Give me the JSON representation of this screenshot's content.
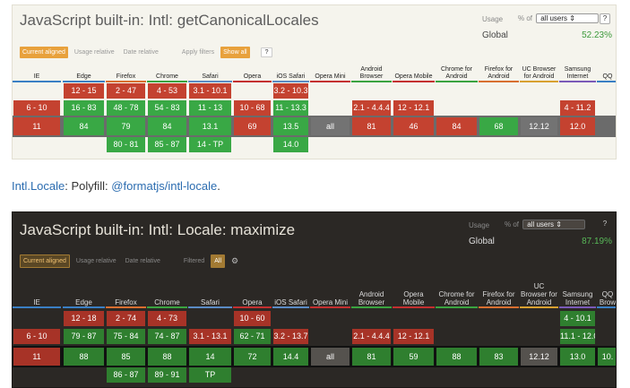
{
  "widget1": {
    "title": "JavaScript built-in: Intl: getCanonicalLocales",
    "usage_label": "Usage",
    "usage_pct": "% of",
    "usage_select": "all users",
    "help": "?",
    "global_label": "Global",
    "global_value": "52.23%",
    "toolbar": {
      "current_aligned": "Current aligned",
      "usage_relative": "Usage relative",
      "date_relative": "Date relative",
      "apply_filters": "Apply filters",
      "show_all": "Show all",
      "help": "?"
    },
    "browsers": [
      "IE",
      "Edge",
      "Firefox",
      "Chrome",
      "Safari",
      "Opera",
      "iOS Safari",
      "Opera Mini",
      "Android Browser",
      "Opera Mobile",
      "Chrome for Android",
      "Firefox for Android",
      "UC Browser for Android",
      "Samsung Internet",
      "QQ"
    ],
    "rows": [
      [
        "",
        "12 - 15",
        "2 - 47",
        "4 - 53",
        "3.1 - 10.1",
        "",
        "3.2 - 10.3",
        "",
        "",
        "",
        "",
        "",
        "",
        "",
        ""
      ],
      [
        "6 - 10",
        "16 - 83",
        "48 - 78",
        "54 - 83",
        "11 - 13",
        "10 - 68",
        "11 - 13.3",
        "",
        "2.1 - 4.4.4",
        "12 - 12.1",
        "",
        "",
        "",
        "4 - 11.2",
        ""
      ],
      [
        "11",
        "84",
        "79",
        "84",
        "13.1",
        "69",
        "13.5",
        "all",
        "81",
        "46",
        "84",
        "68",
        "12.12",
        "12.0",
        ""
      ],
      [
        "",
        "",
        "80 - 81",
        "85 - 87",
        "14 - TP",
        "",
        "14.0",
        "",
        "",
        "",
        "",
        "",
        "",
        "",
        ""
      ]
    ]
  },
  "between_text": {
    "prefix": "Intl.Locale",
    "middle": ": Polyfill: ",
    "link": "@formatjs/intl-locale",
    "suffix": "."
  },
  "widget2": {
    "title": "JavaScript built-in: Intl: Locale: maximize",
    "usage_label": "Usage",
    "usage_pct": "% of",
    "usage_select": "all users",
    "help": "?",
    "global_label": "Global",
    "global_value": "87.19%",
    "toolbar": {
      "current_aligned": "Current aligned",
      "usage_relative": "Usage relative",
      "date_relative": "Date relative",
      "filtered": "Filtered",
      "all": "All",
      "gear": "⚙"
    },
    "browsers": [
      "IE",
      "Edge",
      "Firefox",
      "Chrome",
      "Safari",
      "Opera",
      "iOS Safari",
      "Opera Mini",
      "Android Browser",
      "Opera Mobile",
      "Chrome for Android",
      "Firefox for Android",
      "UC Browser for Android",
      "Samsung Internet",
      "QQ Brow"
    ],
    "rows": [
      [
        "",
        "12 - 18",
        "2 - 74",
        "4 - 73",
        "",
        "10 - 60",
        "",
        "",
        "",
        "",
        "",
        "",
        "",
        "4 - 10.1",
        ""
      ],
      [
        "6 - 10",
        "79 - 87",
        "75 - 84",
        "74 - 87",
        "3.1 - 13.1",
        "62 - 71",
        "3.2 - 13.7",
        "",
        "2.1 - 4.4.4",
        "12 - 12.1",
        "",
        "",
        "",
        "11.1 - 12.0",
        ""
      ],
      [
        "11",
        "88",
        "85",
        "88",
        "14",
        "72",
        "14.4",
        "all",
        "81",
        "59",
        "88",
        "83",
        "12.12",
        "13.0",
        "10."
      ],
      [
        "",
        "",
        "86 - 87",
        "89 - 91",
        "TP",
        "",
        "",
        "",
        "",
        "",
        "",
        "",
        "",
        "",
        ""
      ]
    ]
  }
}
